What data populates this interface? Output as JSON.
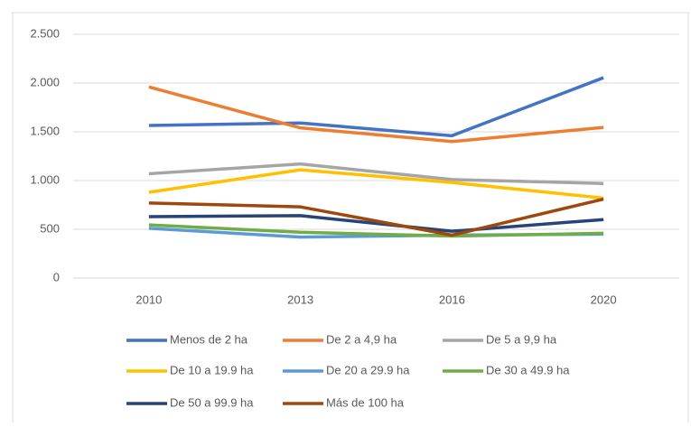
{
  "chart_data": {
    "type": "line",
    "categories": [
      "2010",
      "2013",
      "2016",
      "2020"
    ],
    "series": [
      {
        "name": "Menos de 2 ha",
        "color": "#4472c4",
        "values": [
          1565,
          1590,
          1460,
          2055
        ]
      },
      {
        "name": "De 2 a 4,9 ha",
        "color": "#ed7d31",
        "values": [
          1960,
          1540,
          1400,
          1545
        ]
      },
      {
        "name": "De 5 a 9,9 ha",
        "color": "#a5a5a5",
        "values": [
          1070,
          1170,
          1010,
          970
        ]
      },
      {
        "name": "De 10 a 19.9 ha",
        "color": "#ffc000",
        "values": [
          880,
          1110,
          980,
          820
        ]
      },
      {
        "name": "De 20 a 29.9 ha",
        "color": "#5b9bd5",
        "values": [
          510,
          420,
          440,
          450
        ]
      },
      {
        "name": "De 30 a 49.9 ha",
        "color": "#70ad47",
        "values": [
          545,
          470,
          430,
          460
        ]
      },
      {
        "name": "De 50 a 99.9 ha",
        "color": "#264478",
        "values": [
          630,
          640,
          480,
          600
        ]
      },
      {
        "name": "Más de 100 ha",
        "color": "#9e480e",
        "values": [
          770,
          730,
          440,
          810
        ]
      }
    ],
    "ylim": [
      0,
      2500
    ],
    "yticks": [
      0,
      500,
      {
        "value": 1000,
        "label": "1.000"
      },
      {
        "value": 1500,
        "label": "1.500"
      },
      {
        "value": 2000,
        "label": "2.000"
      },
      {
        "value": 2500,
        "label": "2.500"
      }
    ],
    "grid": true,
    "legend": "bottom"
  }
}
